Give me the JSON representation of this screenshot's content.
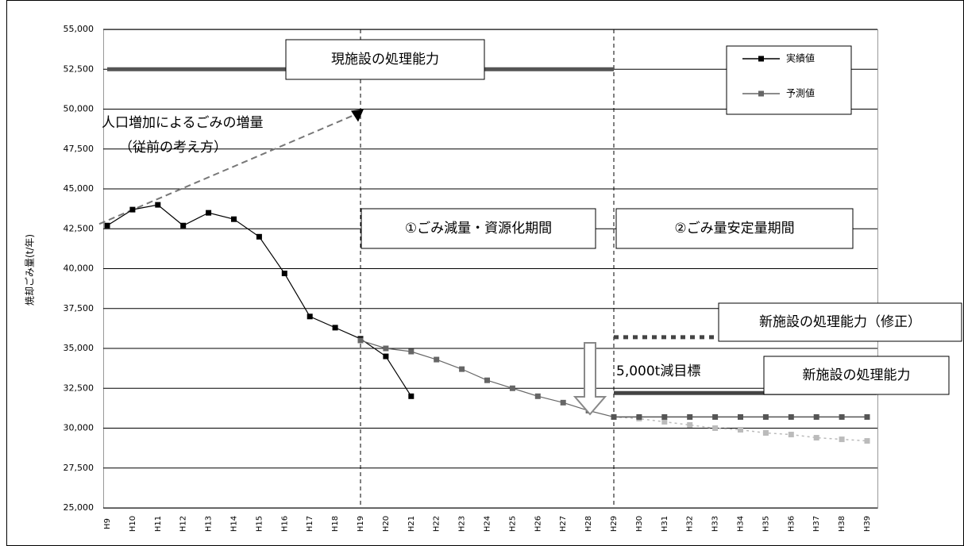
{
  "chart_data": {
    "type": "line",
    "y_label": "焼却ごみ量(t/年)",
    "categories": [
      "H9",
      "H10",
      "H11",
      "H12",
      "H13",
      "H14",
      "H15",
      "H16",
      "H17",
      "H18",
      "H19",
      "H20",
      "H21",
      "H22",
      "H23",
      "H24",
      "H25",
      "H26",
      "H27",
      "H28",
      "H29",
      "H30",
      "H31",
      "H32",
      "H33",
      "H34",
      "H35",
      "H36",
      "H37",
      "H38",
      "H39"
    ],
    "series": [
      {
        "name": "実績値",
        "color": "#000000",
        "values": [
          42700,
          43700,
          44000,
          42700,
          43500,
          43100,
          42000,
          39700,
          37000,
          36300,
          35600,
          34500,
          32000,
          null,
          null,
          null,
          null,
          null,
          null,
          null,
          null,
          null,
          null,
          null,
          null,
          null,
          null,
          null,
          null,
          null,
          null
        ]
      },
      {
        "name": "予測値",
        "color": "#666666",
        "values": [
          null,
          null,
          null,
          null,
          null,
          null,
          null,
          null,
          null,
          null,
          35500,
          35000,
          34800,
          34300,
          33700,
          33000,
          32500,
          32000,
          31600,
          31100,
          30700,
          null,
          null,
          null,
          null,
          null,
          null,
          null,
          null,
          null,
          null
        ]
      },
      {
        "color": "#bbbbbb",
        "values": [
          null,
          null,
          null,
          null,
          null,
          null,
          null,
          null,
          null,
          null,
          null,
          null,
          null,
          null,
          null,
          null,
          null,
          null,
          null,
          null,
          30700,
          30600,
          30400,
          30200,
          30000,
          29900,
          29700,
          29600,
          29400,
          29300,
          29200
        ]
      },
      {
        "color": "#555555",
        "values": [
          null,
          null,
          null,
          null,
          null,
          null,
          null,
          null,
          null,
          null,
          null,
          null,
          null,
          null,
          null,
          null,
          null,
          null,
          null,
          null,
          30700,
          30700,
          30700,
          30700,
          30700,
          30700,
          30700,
          30700,
          30700,
          30700,
          30700
        ]
      }
    ],
    "ylim": [
      25000,
      55000
    ],
    "yticks": [
      {
        "value": 25000,
        "label": "25,000"
      },
      {
        "value": 27500,
        "label": "27,500"
      },
      {
        "value": 30000,
        "label": "30,000"
      },
      {
        "value": 32500,
        "label": "32,500"
      },
      {
        "value": 35000,
        "label": "35,000"
      },
      {
        "value": 37500,
        "label": "37,500"
      },
      {
        "value": 40000,
        "label": "40,000"
      },
      {
        "value": 42500,
        "label": "42,500"
      },
      {
        "value": 45000,
        "label": "45,000"
      },
      {
        "value": 47500,
        "label": "47,500"
      },
      {
        "value": 50000,
        "label": "50,000"
      },
      {
        "value": 52500,
        "label": "52,500"
      },
      {
        "value": 55000,
        "label": "55,000"
      }
    ],
    "grid": true,
    "legend": "upper right",
    "reference_lines": [
      {
        "label": "現施設の処理能力",
        "value": 52500,
        "categories": [
          "H9",
          "H29"
        ],
        "style": "solid"
      },
      {
        "label": "新施設の処理能力（修正）",
        "value": 35700,
        "categories": [
          "H29",
          "H39"
        ],
        "style": "dotted"
      },
      {
        "label": "新施設の処理能力",
        "value": 32200,
        "categories": [
          "H29",
          "H39"
        ],
        "style": "solid"
      }
    ],
    "trend": {
      "label": "人口増加によるごみの増量",
      "note": "（従前の考え方）",
      "categories": [
        "H9",
        "H19"
      ],
      "values": [
        42800,
        49800
      ]
    },
    "periods": [
      {
        "label": "①ごみ減量・資源化期間",
        "divider": "H19"
      },
      {
        "label": "②ごみ量安定量期間",
        "divider": "H29"
      }
    ],
    "target_label": "5,000t減目標"
  }
}
